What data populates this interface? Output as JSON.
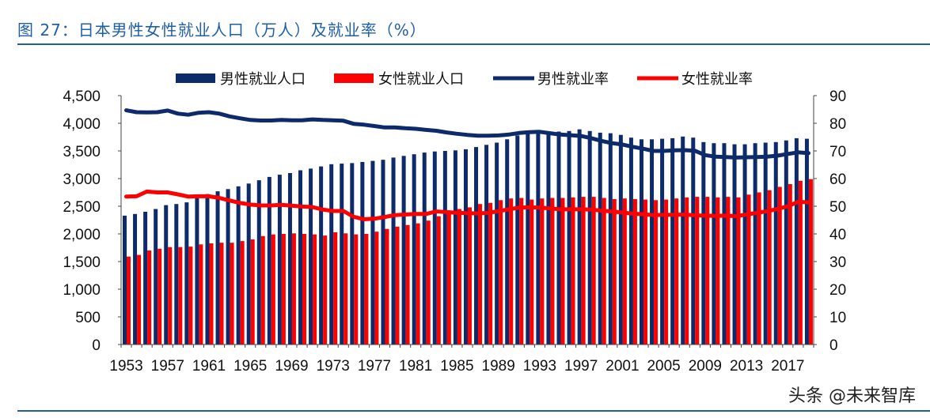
{
  "title": "图 27：日本男性女性就业人口（万人）及就业率（%）",
  "watermark": "头条 @未来智库",
  "chart_data": {
    "type": "bar+line",
    "title": "",
    "legend_position": "top",
    "grid": false,
    "categories": [
      1953,
      1954,
      1955,
      1956,
      1957,
      1958,
      1959,
      1960,
      1961,
      1962,
      1963,
      1964,
      1965,
      1966,
      1967,
      1968,
      1969,
      1970,
      1971,
      1972,
      1973,
      1974,
      1975,
      1976,
      1977,
      1978,
      1979,
      1980,
      1981,
      1982,
      1983,
      1984,
      1985,
      1986,
      1987,
      1988,
      1989,
      1990,
      1991,
      1992,
      1993,
      1994,
      1995,
      1996,
      1997,
      1998,
      1999,
      2000,
      2001,
      2002,
      2003,
      2004,
      2005,
      2006,
      2007,
      2008,
      2009,
      2010,
      2011,
      2012,
      2013,
      2014,
      2015,
      2016,
      2017,
      2018,
      2019
    ],
    "x_tick_labels": [
      "1953",
      "1957",
      "1961",
      "1965",
      "1969",
      "1973",
      "1977",
      "1981",
      "1985",
      "1989",
      "1993",
      "1997",
      "2001",
      "2005",
      "2009",
      "2013",
      "2017"
    ],
    "y_left": {
      "range": [
        0,
        4500
      ],
      "ticks": [
        "0",
        "500",
        "1,000",
        "1,500",
        "2,000",
        "2,500",
        "3,000",
        "3,500",
        "4,000",
        "4,500"
      ]
    },
    "y_right": {
      "range": [
        0,
        90
      ],
      "ticks": [
        "0",
        "10",
        "20",
        "30",
        "40",
        "50",
        "60",
        "70",
        "80",
        "90"
      ]
    },
    "series": [
      {
        "name": "男性就业人口",
        "type": "bar",
        "axis": "left",
        "color": "#0d2a6b",
        "values": [
          2330,
          2360,
          2400,
          2450,
          2520,
          2540,
          2570,
          2690,
          2720,
          2770,
          2810,
          2860,
          2910,
          2970,
          3030,
          3070,
          3100,
          3150,
          3180,
          3220,
          3260,
          3270,
          3280,
          3300,
          3320,
          3340,
          3380,
          3410,
          3440,
          3470,
          3490,
          3500,
          3510,
          3530,
          3570,
          3610,
          3650,
          3710,
          3780,
          3830,
          3840,
          3840,
          3850,
          3860,
          3890,
          3860,
          3830,
          3820,
          3790,
          3740,
          3710,
          3710,
          3720,
          3730,
          3760,
          3740,
          3660,
          3640,
          3640,
          3620,
          3620,
          3640,
          3650,
          3660,
          3690,
          3730,
          3720
        ]
      },
      {
        "name": "女性就业人口",
        "type": "bar",
        "axis": "left",
        "color": "#ff0000",
        "values": [
          1590,
          1620,
          1700,
          1730,
          1760,
          1760,
          1770,
          1810,
          1830,
          1840,
          1840,
          1870,
          1900,
          1960,
          1990,
          2000,
          2010,
          2000,
          1990,
          1970,
          2030,
          2010,
          1990,
          2000,
          2040,
          2090,
          2130,
          2160,
          2190,
          2240,
          2320,
          2390,
          2450,
          2480,
          2540,
          2560,
          2610,
          2640,
          2650,
          2620,
          2640,
          2650,
          2650,
          2660,
          2670,
          2670,
          2650,
          2630,
          2640,
          2630,
          2620,
          2610,
          2620,
          2640,
          2660,
          2670,
          2670,
          2660,
          2670,
          2660,
          2710,
          2750,
          2790,
          2850,
          2900,
          2960,
          2990
        ]
      },
      {
        "name": "男性就业率",
        "type": "line",
        "axis": "right",
        "color": "#0d2a6b",
        "values": [
          84.7,
          84.0,
          83.9,
          84.0,
          84.6,
          83.5,
          83.1,
          83.8,
          84.0,
          83.5,
          82.5,
          81.8,
          81.2,
          81.0,
          81.0,
          81.2,
          81.1,
          81.1,
          81.4,
          81.2,
          81.1,
          80.9,
          79.8,
          79.5,
          79.0,
          78.5,
          78.5,
          78.2,
          78.0,
          77.6,
          77.3,
          76.7,
          76.2,
          75.8,
          75.5,
          75.5,
          75.6,
          75.9,
          76.5,
          76.8,
          76.9,
          76.4,
          75.9,
          75.7,
          75.4,
          74.6,
          73.6,
          72.8,
          72.3,
          71.5,
          70.8,
          70.0,
          70.0,
          70.2,
          70.3,
          70.1,
          68.5,
          67.9,
          67.8,
          67.6,
          67.7,
          67.8,
          67.9,
          68.3,
          68.9,
          69.5,
          69.2
        ]
      },
      {
        "name": "女性就业率",
        "type": "line",
        "axis": "right",
        "color": "#ff0000",
        "values": [
          53.5,
          53.6,
          55.3,
          55.0,
          55.0,
          54.3,
          53.5,
          53.6,
          53.6,
          53.0,
          52.1,
          51.2,
          50.6,
          50.3,
          50.3,
          50.5,
          50.2,
          49.9,
          49.7,
          48.8,
          48.3,
          48.3,
          46.2,
          45.3,
          45.5,
          46.1,
          46.8,
          47.0,
          47.2,
          47.2,
          48.1,
          47.9,
          47.6,
          47.5,
          47.4,
          47.6,
          48.2,
          48.9,
          49.5,
          49.6,
          49.5,
          49.2,
          48.9,
          48.9,
          48.9,
          48.8,
          48.4,
          48.1,
          47.7,
          47.3,
          47.1,
          46.8,
          46.9,
          46.9,
          47.0,
          46.7,
          46.6,
          46.5,
          46.6,
          46.4,
          47.0,
          47.6,
          48.2,
          49.0,
          50.0,
          51.6,
          51.4
        ]
      }
    ]
  }
}
